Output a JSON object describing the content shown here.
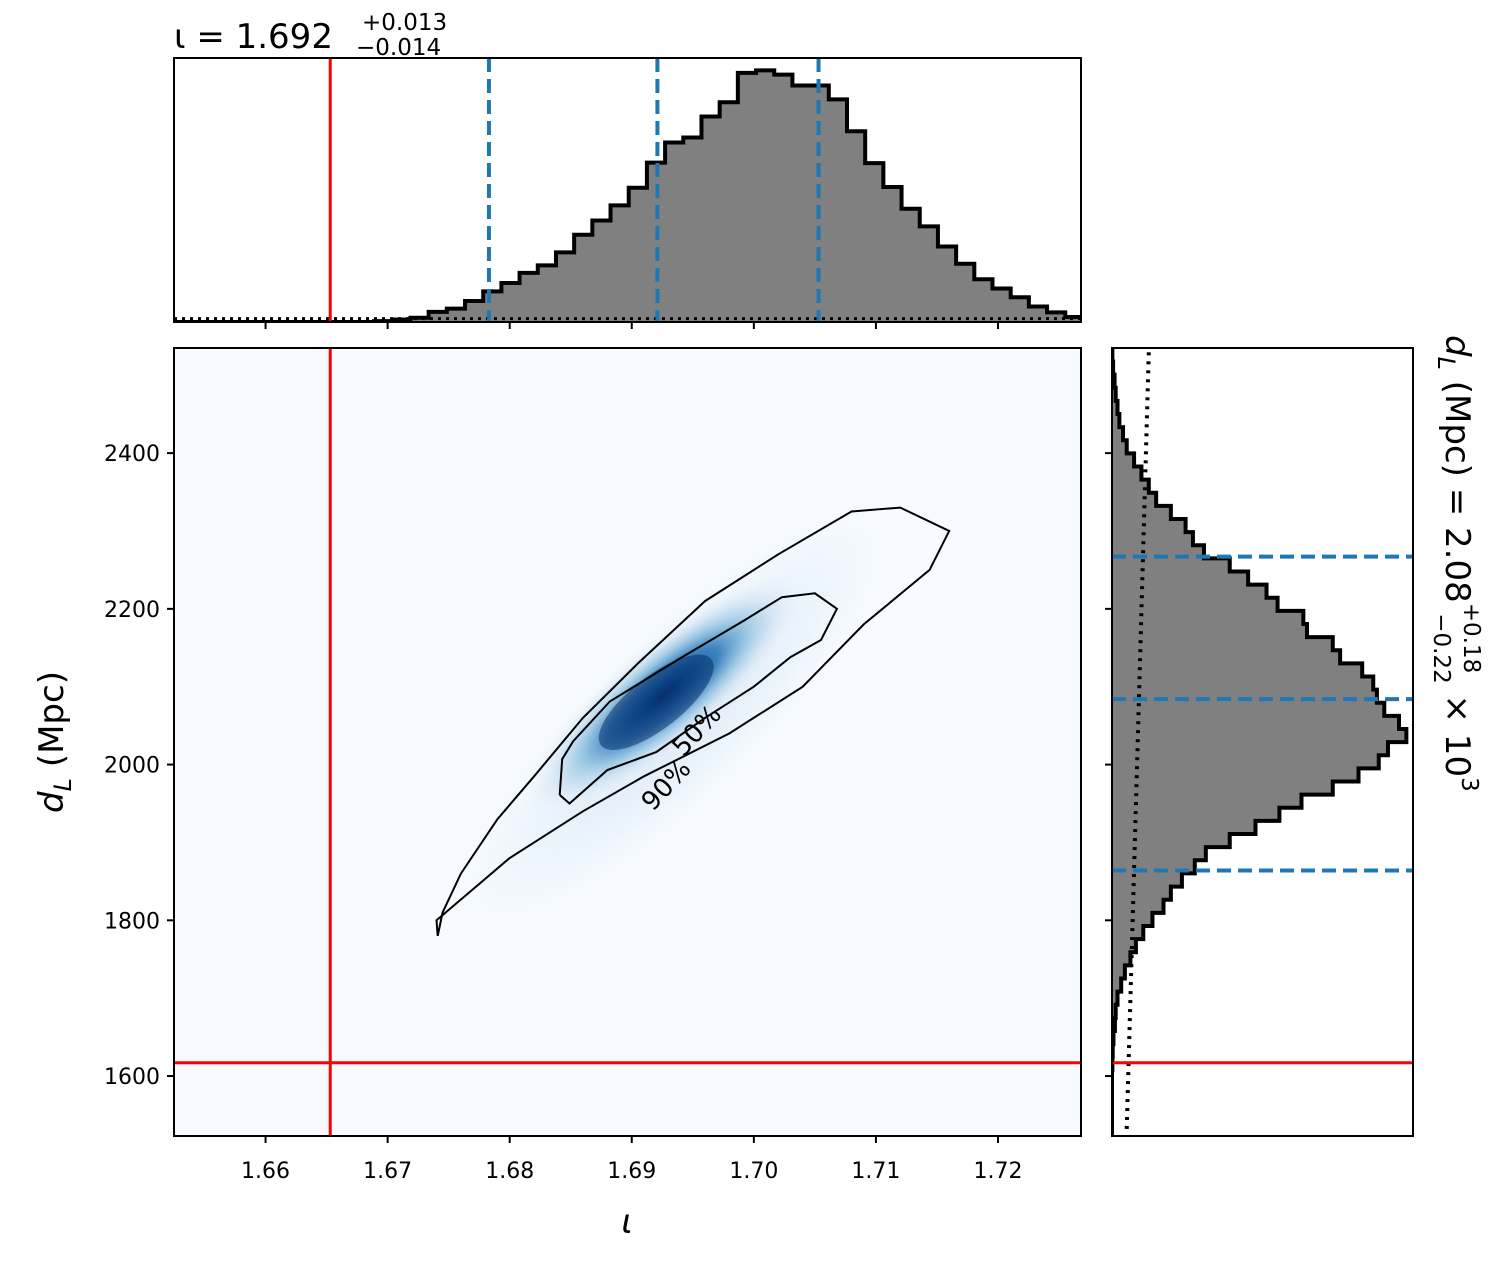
{
  "colors": {
    "injected": "#ff0000",
    "quantile": "#1f77b4",
    "hist_fill": "#808080",
    "hist_edge": "#000000",
    "density_low": "#f7fbff",
    "density_high": "#08306b",
    "contour": "#000000"
  },
  "chart_data": [
    {
      "type": "histogram",
      "panel": "top-marginal",
      "parameter": "ι",
      "title": {
        "prefix": "ι = ",
        "median": "1.692",
        "upper": "+0.013",
        "lower": "−0.014"
      },
      "xlim": [
        1.6525,
        1.7268
      ],
      "xticks": [
        1.66,
        1.67,
        1.68,
        1.69,
        1.7,
        1.71,
        1.72
      ],
      "bin_edges_start": 1.6525,
      "bin_width": 0.00149,
      "counts": [
        0,
        0,
        0,
        0,
        0,
        0,
        0,
        0,
        0,
        0,
        0,
        0.2,
        0.6,
        1,
        2.4,
        3.2,
        5,
        7.3,
        9.3,
        11.7,
        13.5,
        16.6,
        20.8,
        24.2,
        27.8,
        32,
        38,
        42.8,
        44,
        49,
        52.4,
        59.4,
        60,
        59,
        56.4,
        56.4,
        53.1,
        45.5,
        37.9,
        32.2,
        27,
        22.8,
        18,
        13.9,
        10.2,
        8,
        5.9,
        3.7,
        2.3,
        1.2,
        0.6,
        0.6,
        0.2,
        0.1,
        0,
        0,
        0,
        0,
        0,
        0
      ],
      "ymax": 62,
      "prior_level": 0.8,
      "injected_value": 1.6653,
      "quantiles": [
        1.6783,
        1.6921,
        1.7053
      ]
    },
    {
      "type": "heatmap",
      "panel": "joint-posterior",
      "xlabel": "ι",
      "ylabel": {
        "main": "d",
        "sub": "L",
        "unit": " (Mpc)"
      },
      "xlim": [
        1.6525,
        1.7268
      ],
      "ylim": [
        1523,
        2535
      ],
      "xticks": [
        1.66,
        1.67,
        1.68,
        1.69,
        1.7,
        1.71,
        1.72
      ],
      "yticks": [
        1600,
        1800,
        2000,
        2200,
        2400
      ],
      "peak": {
        "iota": 1.692,
        "dL": 2080
      },
      "contours": [
        {
          "label": "50%",
          "label_at": {
            "iota": 1.6953,
            "dL": 2044
          },
          "label_angle": -47,
          "points": [
            [
              1.6841,
              1961
            ],
            [
              1.6843,
              2007
            ],
            [
              1.6852,
              2030
            ],
            [
              1.6882,
              2081
            ],
            [
              1.6938,
              2135
            ],
            [
              1.6992,
              2185
            ],
            [
              1.7023,
              2215
            ],
            [
              1.705,
              2220
            ],
            [
              1.7068,
              2200
            ],
            [
              1.7055,
              2160
            ],
            [
              1.703,
              2138
            ],
            [
              1.7,
              2100
            ],
            [
              1.696,
              2060
            ],
            [
              1.692,
              2016
            ],
            [
              1.688,
              1993
            ],
            [
              1.6849,
              1950
            ],
            [
              1.6841,
              1961
            ]
          ]
        },
        {
          "label": "90%",
          "label_at": {
            "iota": 1.6928,
            "dL": 1974
          },
          "label_angle": -47,
          "points": [
            [
              1.6741,
              1780
            ],
            [
              1.6745,
              1810
            ],
            [
              1.676,
              1860
            ],
            [
              1.679,
              1930
            ],
            [
              1.682,
              1985
            ],
            [
              1.686,
              2060
            ],
            [
              1.6905,
              2130
            ],
            [
              1.696,
              2210
            ],
            [
              1.702,
              2270
            ],
            [
              1.708,
              2325
            ],
            [
              1.712,
              2330
            ],
            [
              1.716,
              2300
            ],
            [
              1.7144,
              2250
            ],
            [
              1.709,
              2180
            ],
            [
              1.704,
              2100
            ],
            [
              1.698,
              2040
            ],
            [
              1.691,
              1985
            ],
            [
              1.686,
              1940
            ],
            [
              1.68,
              1880
            ],
            [
              1.674,
              1800
            ],
            [
              1.6741,
              1780
            ]
          ]
        }
      ],
      "injected_x": 1.6653,
      "injected_y": 1617
    },
    {
      "type": "histogram",
      "orientation": "horizontal",
      "panel": "right-marginal",
      "parameter": "dL",
      "title": {
        "prefix": "d",
        "sub": "L",
        "unit": " (Mpc) = 2.08",
        "upper": "+0.18",
        "lower": "−0.22",
        "suffix": " × 10",
        "exp": "3"
      },
      "ylim": [
        1523,
        2535
      ],
      "yticks": [
        1600,
        1800,
        2000,
        2200,
        2400
      ],
      "bin_edges_start": 1523,
      "bin_width": 16.86,
      "counts": [
        0,
        0,
        0,
        0,
        0,
        0.1,
        0.2,
        0.4,
        0.8,
        1,
        1.5,
        2.5,
        3.5,
        5,
        6.5,
        8.5,
        11,
        14,
        16,
        19,
        22.5,
        25.5,
        32,
        39,
        45.5,
        51.5,
        60,
        67,
        72.5,
        75,
        80,
        78,
        74,
        72,
        71,
        68,
        62,
        60,
        53,
        52,
        45,
        42,
        37,
        32,
        25,
        22,
        20,
        16,
        12,
        10,
        8,
        6,
        4,
        3,
        2,
        1.5,
        1,
        0.7,
        0.3,
        0.1
      ],
      "xmax": 78,
      "prior_slope": [
        [
          1532,
          4
        ],
        [
          2530,
          10
        ]
      ],
      "injected_value": 1617,
      "quantiles": [
        1864,
        2084,
        2267
      ]
    }
  ]
}
